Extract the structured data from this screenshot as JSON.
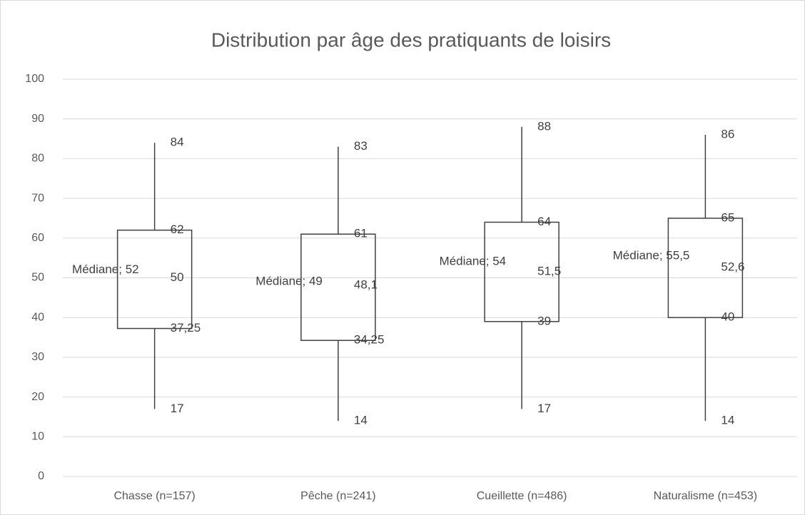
{
  "chart_data": {
    "type": "box",
    "title": "Distribution par âge des pratiquants de loisirs",
    "categories": [
      "Chasse (n=157)",
      "Pêche (n=241)",
      "Cueillette (n=486)",
      "Naturalisme (n=453)"
    ],
    "min": [
      17,
      14,
      17,
      14
    ],
    "q1": [
      37.25,
      34.25,
      39,
      40
    ],
    "q1_labels": [
      "37,25",
      "34,25",
      "39",
      "40"
    ],
    "mean": [
      50,
      48.1,
      51.5,
      52.6
    ],
    "mean_labels": [
      "50",
      "48,1",
      "51,5",
      "52,6"
    ],
    "q3": [
      62,
      61,
      64,
      65
    ],
    "max": [
      84,
      83,
      88,
      86
    ],
    "median": [
      52,
      49,
      54,
      55.5
    ],
    "median_labels": [
      "Médiane; 52",
      "Médiane; 49",
      "Médiane; 54",
      "Médiane; 55,5"
    ],
    "color": "#404040",
    "ylim": [
      0,
      100
    ],
    "yticks": [
      0,
      10,
      20,
      30,
      40,
      50,
      60,
      70,
      80,
      90,
      100
    ],
    "grid": true
  }
}
